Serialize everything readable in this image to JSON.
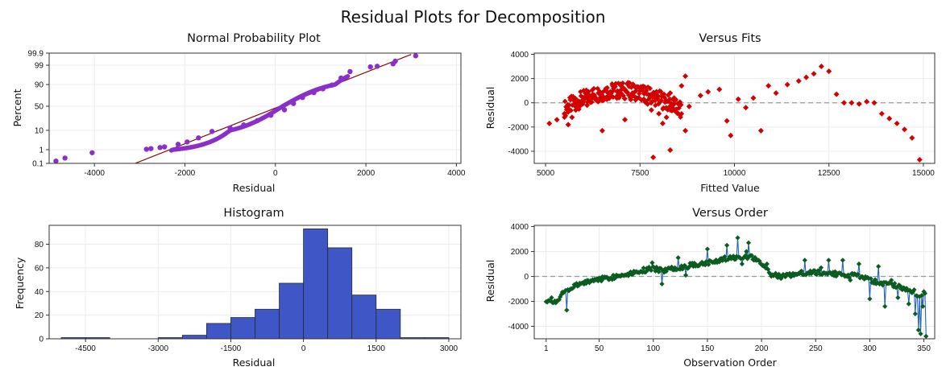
{
  "title": "Residual Plots for Decomposition",
  "colors": {
    "npp_points": "#8B2FC9",
    "npp_line": "#8B0000",
    "fits_points": "#D40000",
    "hist_bars": "#3F57C6",
    "order_points": "#0A5C1F",
    "order_line": "#2563B5",
    "refline": "#9A9A9A",
    "grid": "#EBEBEB"
  },
  "chart_data": [
    {
      "type": "scatter",
      "title": "Normal Probability Plot",
      "xlabel": "Residual",
      "ylabel": "Percent",
      "xlim": [
        -5000,
        4100
      ],
      "x_ticks": [
        -4000,
        -2000,
        0,
        2000,
        4000
      ],
      "y_ticks": [
        0.1,
        1,
        10,
        50,
        90,
        99,
        99.9
      ],
      "grid": true,
      "points": [
        [
          -4850,
          0.25
        ],
        [
          -4650,
          0.45
        ],
        [
          -4050,
          0.8
        ],
        [
          -2850,
          1.2
        ],
        [
          -2750,
          1.5
        ],
        [
          -2550,
          2.0
        ],
        [
          -2450,
          2.3
        ],
        [
          -2150,
          3.5
        ],
        [
          -1950,
          4.6
        ],
        [
          -1700,
          6.5
        ],
        [
          -1400,
          9.5
        ],
        [
          -1000,
          14
        ],
        [
          -700,
          19
        ],
        [
          -400,
          26
        ],
        [
          -100,
          35
        ],
        [
          200,
          44
        ],
        [
          400,
          55
        ],
        [
          600,
          66
        ],
        [
          850,
          75
        ],
        [
          1050,
          82
        ],
        [
          1250,
          89
        ],
        [
          1450,
          93
        ],
        [
          1650,
          96
        ],
        [
          2100,
          98.2
        ],
        [
          2250,
          98.5
        ],
        [
          2600,
          99.1
        ],
        [
          2650,
          99.3
        ],
        [
          3100,
          99.7
        ]
      ],
      "fit_line": [
        [
          -3100,
          0.1
        ],
        [
          3000,
          99.8
        ]
      ]
    },
    {
      "type": "scatter",
      "title": "Versus Fits",
      "xlabel": "Fitted Value",
      "ylabel": "Residual",
      "xlim": [
        4700,
        15300
      ],
      "ylim": [
        -5000,
        4100
      ],
      "x_ticks": [
        5000,
        7500,
        10000,
        12500,
        15000
      ],
      "y_ticks": [
        -4000,
        -2000,
        0,
        2000,
        4000
      ],
      "reference_line": 0,
      "grid": true,
      "points": [
        [
          5100,
          -1700
        ],
        [
          5300,
          -1400
        ],
        [
          5500,
          -900
        ],
        [
          5600,
          -1800
        ],
        [
          5700,
          -1200
        ],
        [
          5800,
          -600
        ],
        [
          5900,
          -300
        ],
        [
          6000,
          100
        ],
        [
          6100,
          -200
        ],
        [
          6200,
          300
        ],
        [
          6300,
          500
        ],
        [
          6400,
          800
        ],
        [
          6500,
          200
        ],
        [
          6600,
          1000
        ],
        [
          6700,
          600
        ],
        [
          6800,
          1200
        ],
        [
          6900,
          900
        ],
        [
          7000,
          1400
        ],
        [
          7100,
          1100
        ],
        [
          7200,
          1600
        ],
        [
          7300,
          800
        ],
        [
          7400,
          400
        ],
        [
          7500,
          1000
        ],
        [
          7600,
          300
        ],
        [
          7700,
          -100
        ],
        [
          7800,
          -600
        ],
        [
          7900,
          200
        ],
        [
          8000,
          -900
        ],
        [
          8100,
          -1700
        ],
        [
          8200,
          -1200
        ],
        [
          8300,
          800
        ],
        [
          8400,
          400
        ],
        [
          8600,
          1400
        ],
        [
          8700,
          2200
        ],
        [
          8800,
          -300
        ],
        [
          6500,
          -2300
        ],
        [
          7100,
          -1400
        ],
        [
          7850,
          -4500
        ],
        [
          8300,
          -3900
        ],
        [
          8700,
          -2300
        ],
        [
          9100,
          600
        ],
        [
          9300,
          900
        ],
        [
          9600,
          1100
        ],
        [
          9800,
          -1500
        ],
        [
          9900,
          -2700
        ],
        [
          10100,
          300
        ],
        [
          10300,
          -400
        ],
        [
          10500,
          400
        ],
        [
          10700,
          -2300
        ],
        [
          10900,
          1400
        ],
        [
          11100,
          800
        ],
        [
          11400,
          1500
        ],
        [
          11700,
          1800
        ],
        [
          11900,
          2100
        ],
        [
          12100,
          2400
        ],
        [
          12300,
          3000
        ],
        [
          12500,
          2600
        ],
        [
          12700,
          700
        ],
        [
          12900,
          0
        ],
        [
          13100,
          0
        ],
        [
          13300,
          -100
        ],
        [
          13500,
          100
        ],
        [
          13700,
          0
        ],
        [
          13900,
          -900
        ],
        [
          14100,
          -1300
        ],
        [
          14300,
          -1700
        ],
        [
          14500,
          -2200
        ],
        [
          14700,
          -2900
        ],
        [
          14900,
          -4700
        ]
      ]
    },
    {
      "type": "bar",
      "title": "Histogram",
      "xlabel": "Residual",
      "ylabel": "Frequency",
      "xlim": [
        -5250,
        3250
      ],
      "ylim": [
        0,
        96
      ],
      "x_ticks": [
        -4500,
        -3000,
        -1500,
        0,
        1500,
        3000
      ],
      "y_ticks": [
        0,
        20,
        40,
        60,
        80
      ],
      "bin_width": 500,
      "bins_start": [
        -5000,
        -4500,
        -4000,
        -3500,
        -3000,
        -2500,
        -2000,
        -1500,
        -1000,
        -500,
        0,
        500,
        1000,
        1500,
        2000,
        2500
      ],
      "values": [
        1,
        1,
        0,
        0,
        1,
        3,
        13,
        18,
        25,
        47,
        93,
        77,
        37,
        25,
        1,
        1
      ]
    },
    {
      "type": "line",
      "title": "Versus Order",
      "xlabel": "Observation Order",
      "ylabel": "Residual",
      "xlim": [
        -10,
        360
      ],
      "ylim": [
        -5000,
        4100
      ],
      "x_ticks": [
        1,
        50,
        100,
        150,
        200,
        250,
        300,
        350
      ],
      "y_ticks": [
        -4000,
        -2000,
        0,
        2000,
        4000
      ],
      "reference_line": 0,
      "grid": true,
      "anchors": [
        [
          1,
          -1900
        ],
        [
          5,
          -1800
        ],
        [
          10,
          -2200
        ],
        [
          15,
          -1500
        ],
        [
          20,
          -1200
        ],
        [
          25,
          -900
        ],
        [
          30,
          -700
        ],
        [
          40,
          -400
        ],
        [
          50,
          -200
        ],
        [
          60,
          -100
        ],
        [
          70,
          100
        ],
        [
          80,
          300
        ],
        [
          90,
          500
        ],
        [
          100,
          600
        ],
        [
          110,
          500
        ],
        [
          120,
          700
        ],
        [
          130,
          800
        ],
        [
          140,
          1000
        ],
        [
          150,
          1100
        ],
        [
          160,
          1300
        ],
        [
          170,
          1500
        ],
        [
          180,
          1600
        ],
        [
          190,
          1600
        ],
        [
          200,
          1100
        ],
        [
          205,
          500
        ],
        [
          210,
          100
        ],
        [
          220,
          0
        ],
        [
          230,
          200
        ],
        [
          240,
          300
        ],
        [
          250,
          300
        ],
        [
          260,
          300
        ],
        [
          270,
          200
        ],
        [
          280,
          100
        ],
        [
          290,
          0
        ],
        [
          300,
          -300
        ],
        [
          310,
          -500
        ],
        [
          320,
          -600
        ],
        [
          330,
          -900
        ],
        [
          340,
          -1200
        ],
        [
          345,
          -1500
        ],
        [
          350,
          -1300
        ]
      ],
      "spikes": [
        [
          20,
          -2700
        ],
        [
          99,
          1100
        ],
        [
          108,
          -600
        ],
        [
          123,
          1500
        ],
        [
          130,
          100
        ],
        [
          150,
          2200
        ],
        [
          168,
          2500
        ],
        [
          178,
          3100
        ],
        [
          182,
          1000
        ],
        [
          186,
          2000
        ],
        [
          188,
          2700
        ],
        [
          193,
          1300
        ],
        [
          205,
          1000
        ],
        [
          240,
          1300
        ],
        [
          255,
          700
        ],
        [
          262,
          1300
        ],
        [
          275,
          1300
        ],
        [
          282,
          -300
        ],
        [
          290,
          1000
        ],
        [
          300,
          -1800
        ],
        [
          308,
          800
        ],
        [
          314,
          -2400
        ],
        [
          320,
          -300
        ],
        [
          326,
          -1700
        ],
        [
          336,
          -2200
        ],
        [
          342,
          -3000
        ],
        [
          345,
          -4300
        ],
        [
          347,
          -4600
        ],
        [
          349,
          -2400
        ],
        [
          352,
          -4800
        ]
      ]
    }
  ]
}
